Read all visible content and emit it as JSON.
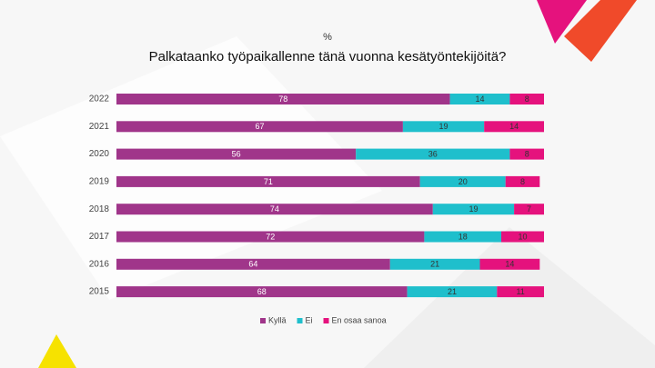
{
  "chart_data": {
    "type": "stacked-bar-horizontal",
    "subtitle": "%",
    "title": "Palkataanko työpaikallenne tänä vuonna kesätyöntekijöitä?",
    "categories": [
      "2022",
      "2021",
      "2020",
      "2019",
      "2018",
      "2017",
      "2016",
      "2015"
    ],
    "series": [
      {
        "name": "Kyllä",
        "color": "#a0358a",
        "values": [
          78,
          67,
          56,
          71,
          74,
          72,
          64,
          68
        ]
      },
      {
        "name": "Ei",
        "color": "#1fbfcc",
        "values": [
          14,
          19,
          36,
          20,
          19,
          18,
          21,
          21
        ]
      },
      {
        "name": "En osaa sanoa",
        "color": "#e5127d",
        "values": [
          8,
          14,
          8,
          8,
          7,
          10,
          14,
          11
        ]
      }
    ],
    "xlim": [
      0,
      100
    ],
    "legend": "bottom"
  }
}
